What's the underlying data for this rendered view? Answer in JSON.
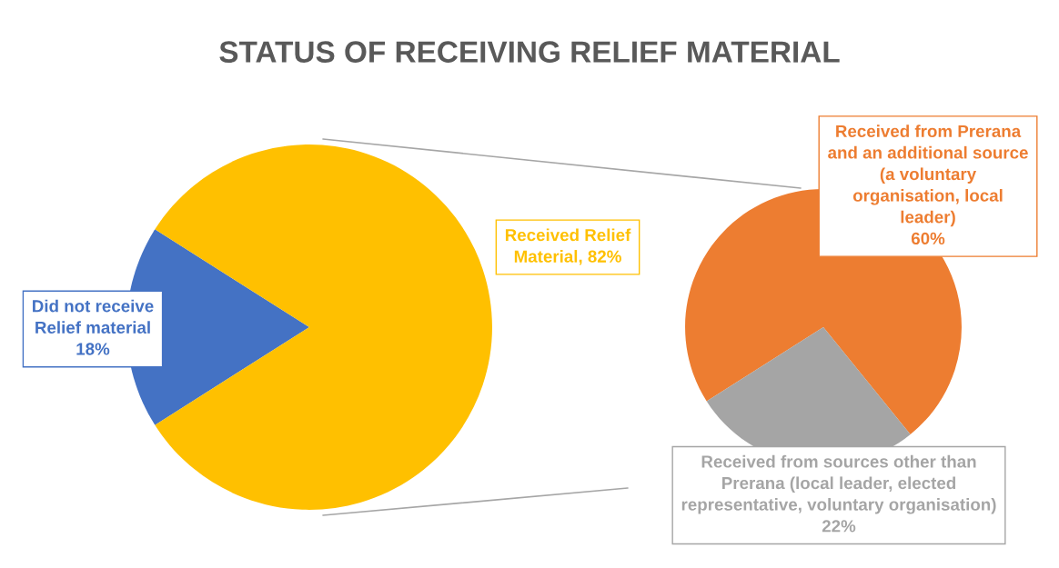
{
  "chart_data": [
    {
      "type": "pie",
      "title": "STATUS OF RECEIVING RELIEF MATERIAL",
      "categories": [
        "Did not receive\nRelief material",
        "Received Relief\nMaterial"
      ],
      "values": [
        18,
        82
      ],
      "value_labels": [
        "18%",
        "82%"
      ],
      "colors": [
        "#4472c4",
        "#ffc000"
      ]
    },
    {
      "type": "pie",
      "categories": [
        "Received from Prerana\nand an additional source\n(a voluntary\norganisation, local\nleader)",
        "Received from sources other than\nPrerana (local leader, elected\nrepresentative, voluntary organisation)"
      ],
      "values": [
        60,
        22
      ],
      "value_labels": [
        "60%",
        "22%"
      ],
      "colors": [
        "#ed7d31",
        "#a5a5a5"
      ]
    }
  ]
}
